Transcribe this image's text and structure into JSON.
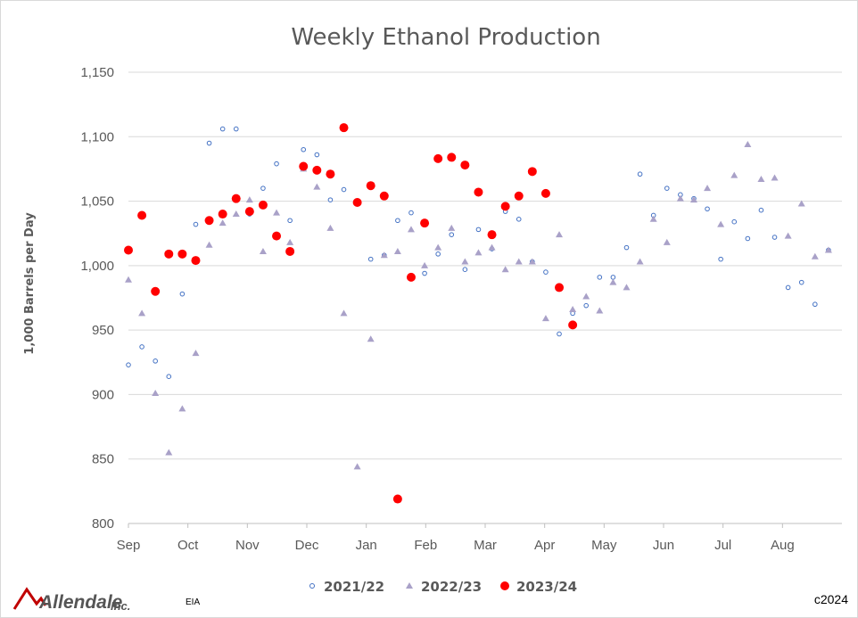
{
  "chart_data": {
    "type": "scatter",
    "title": "Weekly Ethanol Production",
    "ylabel": "1,000 Barrels per Day",
    "xlabel": "",
    "ylim": [
      800,
      1150
    ],
    "yticks": [
      800,
      850,
      900,
      950,
      1000,
      1050,
      1100,
      1150
    ],
    "ytick_labels": [
      "800",
      "850",
      "900",
      "950",
      "1,000",
      "1,050",
      "1,100",
      "1,150"
    ],
    "x_ticks": [
      "Sep",
      "Oct",
      "Nov",
      "Dec",
      "Jan",
      "Feb",
      "Mar",
      "Apr",
      "May",
      "Jun",
      "Jul",
      "Aug"
    ],
    "grid": true,
    "legend_position": "bottom",
    "series": [
      {
        "name": "2021/22",
        "marker": "open-circle",
        "color": "#4472c4",
        "x": [
          0,
          1,
          2,
          3,
          4,
          5,
          6,
          7,
          8,
          9,
          10,
          11,
          12,
          13,
          14,
          15,
          16,
          17,
          18,
          19,
          20,
          21,
          22,
          23,
          24,
          25,
          26,
          27,
          28,
          29,
          30,
          31,
          32,
          33,
          34,
          35,
          36,
          37,
          38,
          39,
          40,
          41,
          42,
          43,
          44,
          45,
          46,
          47,
          48,
          49,
          50,
          51,
          52
        ],
        "y": [
          923,
          937,
          926,
          914,
          978,
          1032,
          1095,
          1106,
          1106,
          1040,
          1060,
          1079,
          1035,
          1090,
          1086,
          1051,
          1059,
          1049,
          1005,
          1008,
          1035,
          1041,
          994,
          1009,
          1024,
          997,
          1028,
          1013,
          1042,
          1036,
          1003,
          995,
          947,
          963,
          969,
          991,
          991,
          1014,
          1071,
          1039,
          1060,
          1055,
          1052,
          1044,
          1005,
          1034,
          1021,
          1043,
          1022,
          983,
          987,
          970,
          1012
        ]
      },
      {
        "name": "2022/23",
        "marker": "triangle",
        "color": "#a9a1c8",
        "x": [
          0,
          1,
          2,
          3,
          4,
          5,
          6,
          7,
          8,
          9,
          10,
          11,
          12,
          13,
          14,
          15,
          16,
          17,
          18,
          19,
          20,
          21,
          22,
          23,
          24,
          25,
          26,
          27,
          28,
          29,
          30,
          31,
          32,
          33,
          34,
          35,
          36,
          37,
          38,
          39,
          40,
          41,
          42,
          43,
          44,
          45,
          46,
          47,
          48,
          49,
          50,
          51,
          52
        ],
        "y": [
          989,
          963,
          901,
          855,
          889,
          932,
          1016,
          1033,
          1040,
          1051,
          1011,
          1041,
          1018,
          1075,
          1061,
          1029,
          963,
          844,
          943,
          1008,
          1011,
          1028,
          1000,
          1014,
          1029,
          1003,
          1010,
          1014,
          997,
          1003,
          1003,
          959,
          1024,
          966,
          976,
          965,
          987,
          983,
          1003,
          1036,
          1018,
          1052,
          1051,
          1060,
          1032,
          1070,
          1094,
          1067,
          1068,
          1023,
          1048,
          1007,
          1012
        ]
      },
      {
        "name": "2023/24",
        "marker": "filled-circle",
        "color": "#ff0000",
        "x": [
          0,
          1,
          2,
          3,
          4,
          5,
          6,
          7,
          8,
          9,
          10,
          11,
          12,
          13,
          14,
          15,
          16,
          17,
          18,
          19,
          20,
          21,
          22,
          23,
          24,
          25,
          26,
          27,
          28,
          29,
          30,
          31,
          32,
          33
        ],
        "y": [
          1012,
          1039,
          980,
          1009,
          1009,
          1004,
          1035,
          1040,
          1052,
          1042,
          1047,
          1023,
          1011,
          1077,
          1074,
          1071,
          1107,
          1049,
          1062,
          1054,
          819,
          991,
          1033,
          1083,
          1084,
          1078,
          1057,
          1024,
          1046,
          1054,
          1073,
          1056,
          983,
          954
        ]
      }
    ]
  },
  "footer": {
    "logo_text": "Allendale",
    "logo_suffix": "Inc.",
    "source": "EIA",
    "copyright": "c2024"
  }
}
